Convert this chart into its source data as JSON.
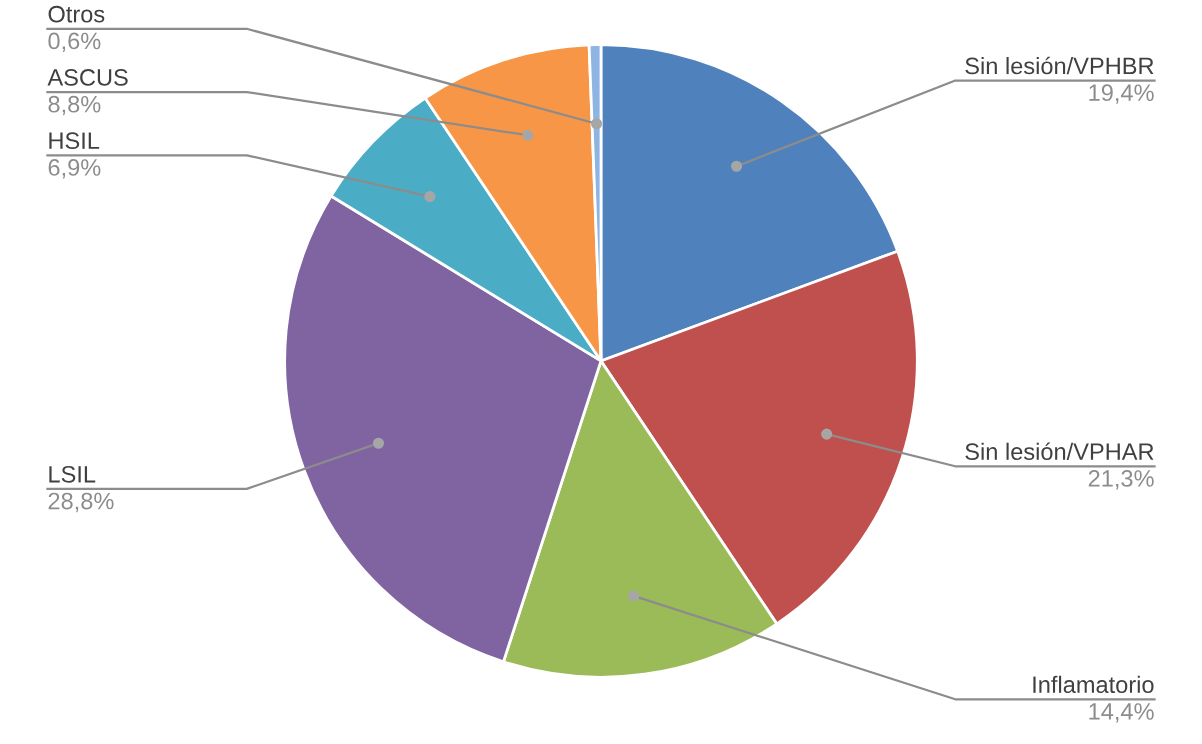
{
  "chart_data": {
    "type": "pie",
    "categories": [
      "Sin lesión/VPHBR",
      "Sin lesión/VPHAR",
      "Inflamatorio",
      "LSIL",
      "HSIL",
      "ASCUS",
      "Otros"
    ],
    "values": [
      19.4,
      21.3,
      14.4,
      28.8,
      6.9,
      8.8,
      0.6
    ],
    "value_labels": [
      "19,4%",
      "21,3%",
      "14,4%",
      "28,8%",
      "6,9%",
      "8,8%",
      "0,6%"
    ],
    "colors": [
      "#4f81bd",
      "#c0504d",
      "#9bbb59",
      "#8064a2",
      "#4bacc6",
      "#f79646",
      "#8eb4e3"
    ],
    "legend": false
  }
}
